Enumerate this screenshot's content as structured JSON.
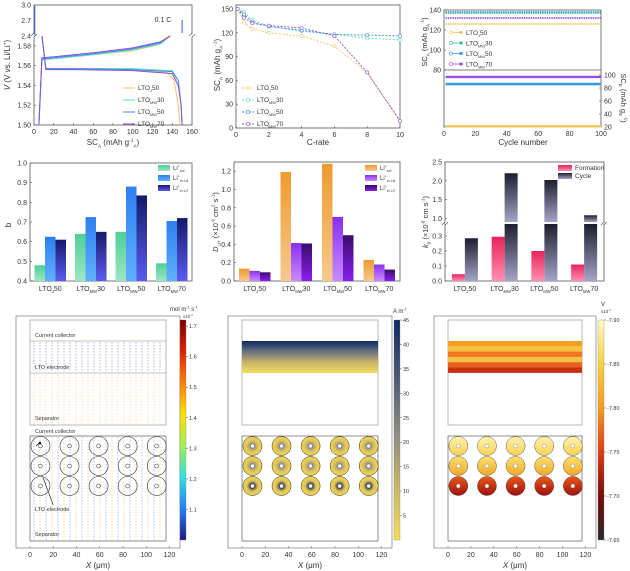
{
  "chart_data": [
    {
      "id": "voltage_profile",
      "type": "line",
      "xlabel": "SC_A (mAh g_A^-1)",
      "xlabel_main": "SC",
      "xlabel_sub": "A",
      "xlabel_unit": " (mAh g",
      "xlabel_unit_sup": "-1",
      "xlabel_unit_sub": "A",
      "ylabel": "V (V vs. Li/Li+)",
      "xlim": [
        0,
        160
      ],
      "ylim_lower": [
        1.5,
        1.59
      ],
      "ylim_upper": [
        2.4,
        3.0
      ],
      "xticks": [
        "0",
        "20",
        "40",
        "60",
        "80",
        "100",
        "120",
        "140",
        "160"
      ],
      "yticks_lower": [
        "1.50",
        "1.52",
        "1.54",
        "1.56",
        "1.58"
      ],
      "yticks_upper": [
        "2.4",
        "2.7",
        "3.0"
      ],
      "annotation": "0.1 C",
      "series": [
        {
          "name": "LTO_J50",
          "label": "LTO",
          "sub": "J",
          "suffix": "50",
          "color": "#f5c26b",
          "charge": [
            [
              5,
              1.5
            ],
            [
              8,
              1.566
            ],
            [
              20,
              1.567
            ],
            [
              60,
              1.571
            ],
            [
              100,
              1.575
            ],
            [
              125,
              1.581
            ],
            [
              133,
              1.588
            ],
            [
              137,
              1.59
            ]
          ],
          "discharge": [
            [
              8,
              1.59
            ],
            [
              12,
              1.557
            ],
            [
              40,
              1.557
            ],
            [
              100,
              1.556
            ],
            [
              135,
              1.553
            ],
            [
              142,
              1.545
            ],
            [
              146,
              1.52
            ],
            [
              148,
              1.5
            ]
          ]
        },
        {
          "name": "LTO_MW30",
          "label": "LTO",
          "sub": "MW",
          "suffix": "30",
          "color": "#5fdcc8",
          "charge": [
            [
              5,
              1.5
            ],
            [
              8,
              1.566
            ],
            [
              20,
              1.567
            ],
            [
              60,
              1.571
            ],
            [
              100,
              1.576
            ],
            [
              128,
              1.582
            ],
            [
              135,
              1.588
            ],
            [
              138,
              1.59
            ]
          ],
          "discharge": [
            [
              8,
              1.59
            ],
            [
              12,
              1.557
            ],
            [
              40,
              1.557
            ],
            [
              100,
              1.557
            ],
            [
              140,
              1.555
            ],
            [
              146,
              1.545
            ],
            [
              149,
              1.52
            ],
            [
              150,
              1.5
            ]
          ]
        },
        {
          "name": "LTO_MW50",
          "label": "LTO",
          "sub": "MW",
          "suffix": "50",
          "color": "#3b8de0",
          "charge": [
            [
              5,
              1.5
            ],
            [
              8,
              1.567
            ],
            [
              20,
              1.568
            ],
            [
              60,
              1.572
            ],
            [
              100,
              1.577
            ],
            [
              128,
              1.583
            ],
            [
              135,
              1.588
            ],
            [
              138,
              1.59
            ]
          ],
          "discharge": [
            [
              8,
              1.59
            ],
            [
              12,
              1.557
            ],
            [
              40,
              1.557
            ],
            [
              100,
              1.556
            ],
            [
              140,
              1.554
            ],
            [
              146,
              1.545
            ],
            [
              149,
              1.52
            ],
            [
              150,
              1.5
            ]
          ]
        },
        {
          "name": "LTO_MW70",
          "label": "LTO",
          "sub": "MW",
          "suffix": "70",
          "color": "#8a4fe0",
          "charge": [
            [
              5,
              1.5
            ],
            [
              8,
              1.568
            ],
            [
              20,
              1.569
            ],
            [
              60,
              1.573
            ],
            [
              100,
              1.578
            ],
            [
              128,
              1.584
            ],
            [
              135,
              1.588
            ],
            [
              138,
              1.59
            ]
          ],
          "discharge": [
            [
              8,
              1.59
            ],
            [
              12,
              1.556
            ],
            [
              40,
              1.556
            ],
            [
              100,
              1.555
            ],
            [
              140,
              1.552
            ],
            [
              146,
              1.54
            ],
            [
              149,
              1.52
            ],
            [
              150,
              1.5
            ]
          ]
        }
      ]
    },
    {
      "id": "rate_capability",
      "type": "line",
      "xlabel": "C-rate",
      "ylabel": "SC_A (mAh g_A^-1)",
      "xlim": [
        0,
        10
      ],
      "ylim": [
        0,
        155
      ],
      "xticks": [
        "0",
        "2",
        "4",
        "6",
        "8",
        "10"
      ],
      "yticks": [
        "0",
        "30",
        "60",
        "90",
        "120",
        "150"
      ],
      "x": [
        0.1,
        0.5,
        1,
        2,
        4,
        6,
        8,
        10
      ],
      "series": [
        {
          "name": "LTO_J50",
          "label": "LTO",
          "sub": "J",
          "suffix": "50",
          "color": "#f5c26b",
          "values": [
            150,
            133,
            125,
            120,
            116,
            103,
            70,
            9
          ]
        },
        {
          "name": "LTO_MW30",
          "label": "LTO",
          "sub": "MW",
          "suffix": "30",
          "color": "#5fdcc8",
          "values": [
            150,
            146,
            136,
            128,
            122,
            118,
            113,
            111
          ]
        },
        {
          "name": "LTO_MW50",
          "label": "LTO",
          "sub": "MW",
          "suffix": "50",
          "color": "#3b8de0",
          "values": [
            150,
            143,
            133,
            128,
            123,
            118,
            117,
            116
          ]
        },
        {
          "name": "LTO_MW70",
          "label": "LTO",
          "sub": "MW",
          "suffix": "70",
          "color": "#8a4fe0",
          "values": [
            150,
            139,
            132,
            129,
            126,
            116,
            70,
            9
          ]
        }
      ]
    },
    {
      "id": "cycling",
      "type": "line",
      "xlabel": "Cycle number",
      "ylabel_left": "SC_A (mAh g_A^-1)",
      "ylabel_right": "SC_E (mAh g_E^-1)",
      "xlim": [
        0,
        100
      ],
      "ylim_top": [
        80,
        140
      ],
      "ylim_bottom": [
        20,
        100
      ],
      "xticks": [
        "0",
        "20",
        "40",
        "60",
        "80",
        "100"
      ],
      "yticks_top": [
        "80",
        "100",
        "120",
        "140"
      ],
      "yticks_right": [
        "20",
        "40",
        "60",
        "80",
        "100"
      ],
      "series": [
        {
          "name": "LTO_J50",
          "label": "LTO",
          "sub": "J",
          "suffix": "50",
          "color": "#f2c55c",
          "sc_a": 126,
          "sc_e": 21
        },
        {
          "name": "LTO_MW30",
          "label": "LTO",
          "sub": "MW",
          "suffix": "30",
          "color": "#35b89a",
          "sc_a": 137,
          "sc_e": 86
        },
        {
          "name": "LTO_MW50",
          "label": "LTO",
          "sub": "MW",
          "suffix": "50",
          "color": "#3a9be0",
          "sc_a": 138,
          "sc_e": 86
        },
        {
          "name": "LTO_MW70",
          "label": "LTO",
          "sub": "MW",
          "suffix": "70",
          "color": "#9b4fe0",
          "sc_a": 132,
          "sc_e": 97
        }
      ]
    },
    {
      "id": "b_value",
      "type": "bar",
      "ylabel": "b",
      "ylim": [
        0.4,
        1.0
      ],
      "yticks": [
        "0.4",
        "0.5",
        "0.6",
        "0.7",
        "0.8",
        "0.9",
        "1.0"
      ],
      "categories": [
        {
          "label": "LTO",
          "sub": "J",
          "suffix": "50"
        },
        {
          "label": "LTO",
          "sub": "MW",
          "suffix": "30"
        },
        {
          "label": "LTO",
          "sub": "MW",
          "suffix": "50"
        },
        {
          "label": "LTO",
          "sub": "MW",
          "suffix": "70"
        }
      ],
      "series": [
        {
          "name": "Li+ sol",
          "legend": "Li",
          "sup": "+",
          "sub": "sol",
          "top": "#4ecf96",
          "bottom": "#9ee6c4",
          "values": [
            0.48,
            0.64,
            0.65,
            0.49
          ]
        },
        {
          "name": "Li+ in Li4",
          "legend": "Li",
          "sup": "+",
          "sub": "in Li4",
          "top": "#2f7ff0",
          "bottom": "#5fb0ff",
          "values": [
            0.625,
            0.725,
            0.88,
            0.705
          ]
        },
        {
          "name": "Li+ in Li7",
          "legend": "Li",
          "sup": "+",
          "sub": "in Li7",
          "top": "#151a6a",
          "bottom": "#5a5cf0",
          "values": [
            0.61,
            0.65,
            0.835,
            0.72
          ]
        }
      ]
    },
    {
      "id": "diffusion",
      "type": "bar",
      "ylabel": "D_Li+ (x10^-9 cm^2 s^-1)",
      "ylim": [
        0,
        1.3
      ],
      "yticks": [
        "0.0",
        "0.2",
        "0.4",
        "0.6",
        "0.8",
        "1.0",
        "1.2"
      ],
      "categories": [
        {
          "label": "LTO",
          "sub": "J",
          "suffix": "50"
        },
        {
          "label": "LTO",
          "sub": "MW",
          "suffix": "30"
        },
        {
          "label": "LTO",
          "sub": "MW",
          "suffix": "50"
        },
        {
          "label": "LTO",
          "sub": "MW",
          "suffix": "70"
        }
      ],
      "series": [
        {
          "name": "Li+ sol",
          "legend": "Li",
          "sup": "+",
          "sub": "sol",
          "top": "#ee9a2e",
          "bottom": "#f7c98e",
          "values": [
            0.135,
            1.19,
            1.28,
            0.23
          ]
        },
        {
          "name": "Li+ in Li4",
          "legend": "Li",
          "sup": "+",
          "sub": "in Li4",
          "top": "#8a2ff0",
          "bottom": "#c88cff",
          "values": [
            0.11,
            0.415,
            0.7,
            0.18
          ]
        },
        {
          "name": "Li+ in Li7",
          "legend": "Li",
          "sup": "+",
          "sub": "in Li7",
          "top": "#3a0a6a",
          "bottom": "#8a1ff0",
          "values": [
            0.095,
            0.41,
            0.5,
            0.125
          ]
        }
      ]
    },
    {
      "id": "k0",
      "type": "bar",
      "ylabel": "k_0 (x10^-8 cm s^-1)",
      "ylim_lower": [
        0,
        0.38
      ],
      "ylim_upper": [
        0.9,
        2.5
      ],
      "yticks_lower": [
        "0.0",
        "0.1",
        "0.2",
        "0.3"
      ],
      "yticks_upper": [
        "1.0",
        "1.5",
        "2.0",
        "2.5"
      ],
      "categories": [
        {
          "label": "LTO",
          "sub": "J",
          "suffix": "50"
        },
        {
          "label": "LTO",
          "sub": "MW",
          "suffix": "30"
        },
        {
          "label": "LTO",
          "sub": "MW",
          "suffix": "50"
        },
        {
          "label": "LTO",
          "sub": "MW",
          "suffix": "70"
        }
      ],
      "series": [
        {
          "name": "Formation",
          "legend": "Formation",
          "top": "#e8245c",
          "bottom": "#ff8fb0",
          "values": [
            0.045,
            0.295,
            0.2,
            0.11
          ]
        },
        {
          "name": "Cycle",
          "legend": "Cycle",
          "top": "#1e1e30",
          "bottom": "#a4a4c8",
          "values": [
            0.285,
            2.2,
            2.02,
            1.08
          ]
        }
      ]
    }
  ],
  "maps": {
    "flux": {
      "unit": "mol m",
      "unit_sup": "-2",
      "unit_s": " s",
      "unit_s_sup": "-1",
      "scale": "x10",
      "scale_sup": "-4",
      "colorbar_ticks": [
        "1.1",
        "1.2",
        "1.3",
        "1.4",
        "1.5",
        "1.6",
        "1.7"
      ],
      "colorbar_range": [
        1.0,
        1.72
      ],
      "top_labels": {
        "collector": "Current collector",
        "electrode": "LTO electrode",
        "separator": "Separator"
      },
      "bottom_labels": {
        "collector": "Current collector",
        "electrode": "LTO electrode",
        "separator": "Separator"
      },
      "xlabel": "X (μm)",
      "xticks": [
        "0",
        "20",
        "40",
        "60",
        "80",
        "100",
        "120"
      ]
    },
    "current": {
      "unit": "A m",
      "unit_sup": "-2",
      "colorbar_ticks": [
        "5",
        "10",
        "15",
        "20",
        "25",
        "30",
        "35",
        "40",
        "45"
      ],
      "colorbar_range": [
        0,
        45
      ],
      "xlabel": "X (μm)",
      "xticks": [
        "0",
        "20",
        "40",
        "60",
        "80",
        "100",
        "120"
      ]
    },
    "potential": {
      "unit": "V",
      "scale": "x10",
      "scale_sup": "-3",
      "colorbar_ticks": [
        "-7.65",
        "-7.70",
        "-7.75",
        "-7.80",
        "-7.85",
        "-7.90"
      ],
      "colorbar_range": [
        -7.9,
        -7.65
      ],
      "xlabel": "X (μm)",
      "xticks": [
        "0",
        "20",
        "40",
        "60",
        "80",
        "100",
        "120"
      ]
    }
  }
}
